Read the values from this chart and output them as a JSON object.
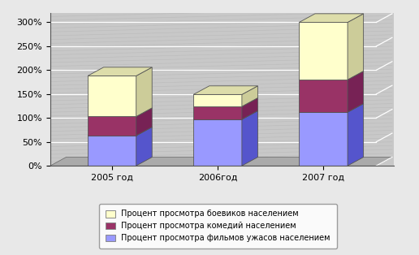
{
  "categories": [
    "2005 год",
    "2006год",
    "2007 год"
  ],
  "боевики": [
    85,
    25,
    120
  ],
  "комедии": [
    40,
    27,
    68
  ],
  "ужасы": [
    63,
    97,
    112
  ],
  "color_боевики_front": "#FFFFCC",
  "color_боевики_side": "#CCCC99",
  "color_боевики_top": "#DDDDAA",
  "color_комедии_front": "#993366",
  "color_комедии_side": "#772255",
  "color_комедии_top": "#AA4477",
  "color_ужасы_front": "#9999FF",
  "color_ужасы_side": "#5555CC",
  "color_ужасы_top": "#7777DD",
  "wall_color": "#C8C8C8",
  "floor_color": "#A8A8A8",
  "fig_bg": "#E8E8E8",
  "plot_area_bg": "#C8C8C8",
  "grid_line_color": "#FFFFFF",
  "ylim": [
    0,
    320
  ],
  "yticks": [
    0,
    50,
    100,
    150,
    200,
    250,
    300
  ],
  "legend_labels": [
    "Процент просмотра боевиков населением",
    "Процент просмотра комедий населением",
    "Процент просмотра фильмов ужасов населением"
  ],
  "figsize": [
    5.16,
    3.14
  ],
  "dpi": 100
}
